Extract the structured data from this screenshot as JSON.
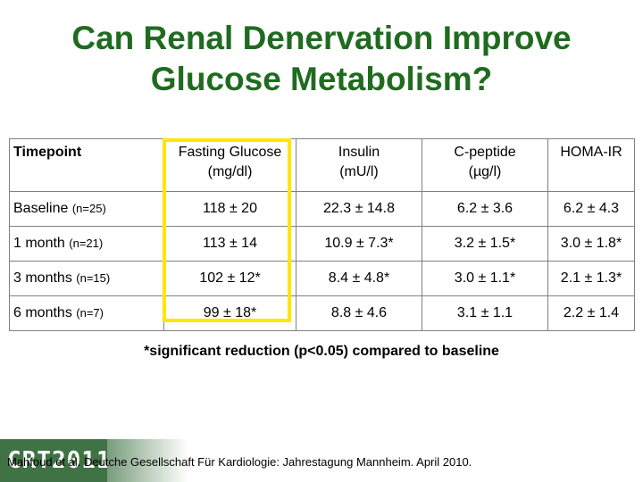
{
  "title": {
    "line1": "Can Renal Denervation Improve",
    "line2": "Glucose Metabolism?"
  },
  "table": {
    "headers": [
      {
        "label": "Timepoint",
        "unit": ""
      },
      {
        "label": "Fasting Glucose",
        "unit": "(mg/dl)"
      },
      {
        "label": "Insulin",
        "unit": "(mU/l)"
      },
      {
        "label": "C-peptide",
        "unit": "(µg/l)"
      },
      {
        "label": "HOMA-IR",
        "unit": ""
      }
    ],
    "rows": [
      {
        "timepoint": "Baseline",
        "n": "(n=25)",
        "glucose": "118 ± 20",
        "insulin": "22.3 ± 14.8",
        "cpeptide": "6.2 ± 3.6",
        "homa": "6.2 ± 4.3"
      },
      {
        "timepoint": "1 month",
        "n": "(n=21)",
        "glucose": "113 ± 14",
        "insulin": "10.9 ± 7.3*",
        "cpeptide": "3.2 ± 1.5*",
        "homa": "3.0 ± 1.8*"
      },
      {
        "timepoint": "3 months",
        "n": "(n=15)",
        "glucose": "102 ± 12*",
        "insulin": "8.4 ± 4.8*",
        "cpeptide": "3.0 ± 1.1*",
        "homa": "2.1 ± 1.3*"
      },
      {
        "timepoint": "6 months",
        "n": "(n=7)",
        "glucose": "99 ± 18*",
        "insulin": "8.8 ± 4.6",
        "cpeptide": "3.1 ± 1.1",
        "homa": "2.2 ± 1.4"
      }
    ]
  },
  "footnote": "*significant reduction (p<0.05) compared to baseline",
  "footer": {
    "logo_text": "CRT2011",
    "citation": "Mahfoud et al. Deutche Gesellschaft Für Kardiologie: Jahrestagung Mannheim.  April 2010."
  },
  "colors": {
    "title": "#1f6b1f",
    "highlight": "#ffe600",
    "logo_bg": "#1e5a24"
  }
}
